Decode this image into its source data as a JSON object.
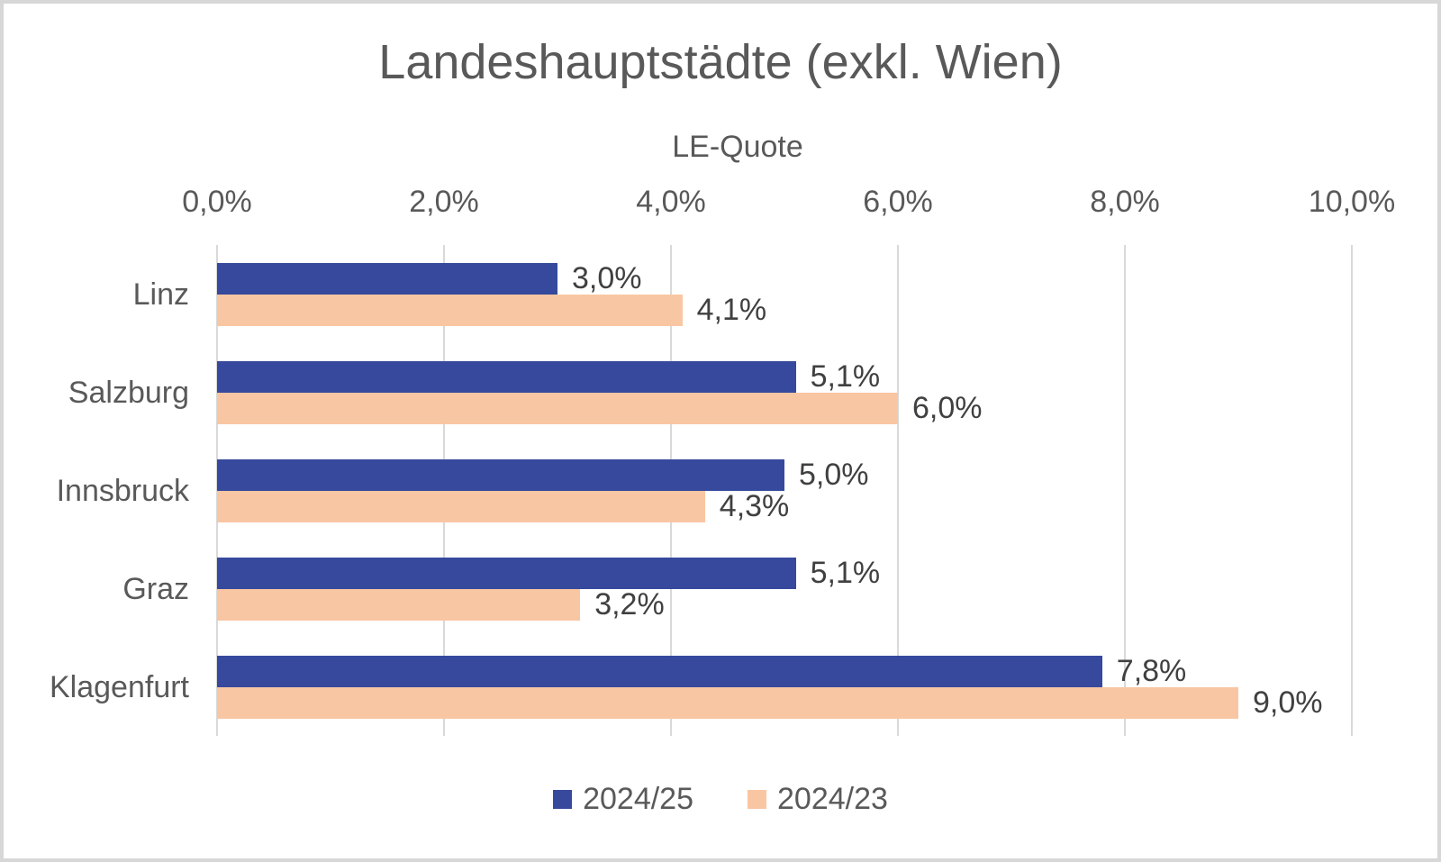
{
  "chart_data": {
    "type": "bar",
    "orientation": "horizontal",
    "title": "Landeshauptstädte (exkl. Wien)",
    "x_axis_title": "LE-Quote",
    "categories": [
      "Linz",
      "Salzburg",
      "Innsbruck",
      "Graz",
      "Klagenfurt"
    ],
    "series": [
      {
        "name": "2024/25",
        "color": "#36499C",
        "values": [
          3.0,
          5.1,
          5.0,
          5.1,
          7.8
        ],
        "labels": [
          "3,0%",
          "5,1%",
          "5,0%",
          "5,1%",
          "7,8%"
        ]
      },
      {
        "name": "2024/23",
        "color": "#F9C6A3",
        "values": [
          4.1,
          6.0,
          4.3,
          3.2,
          9.0
        ],
        "labels": [
          "4,1%",
          "6,0%",
          "4,3%",
          "3,2%",
          "9,0%"
        ]
      }
    ],
    "x_axis": {
      "min": 0,
      "max": 10,
      "tick_labels": [
        "0,0%",
        "2,0%",
        "4,0%",
        "6,0%",
        "8,0%",
        "10,0%"
      ]
    },
    "legend": {
      "position": "bottom",
      "entries": [
        "2024/25",
        "2024/23"
      ]
    },
    "grid": "vertical-only",
    "colors": {
      "axis_text": "#595959",
      "data_label_text": "#404040",
      "gridline": "#D9D9D9",
      "background": "#FFFFFF",
      "frame_border": "#D7D7D7"
    }
  }
}
